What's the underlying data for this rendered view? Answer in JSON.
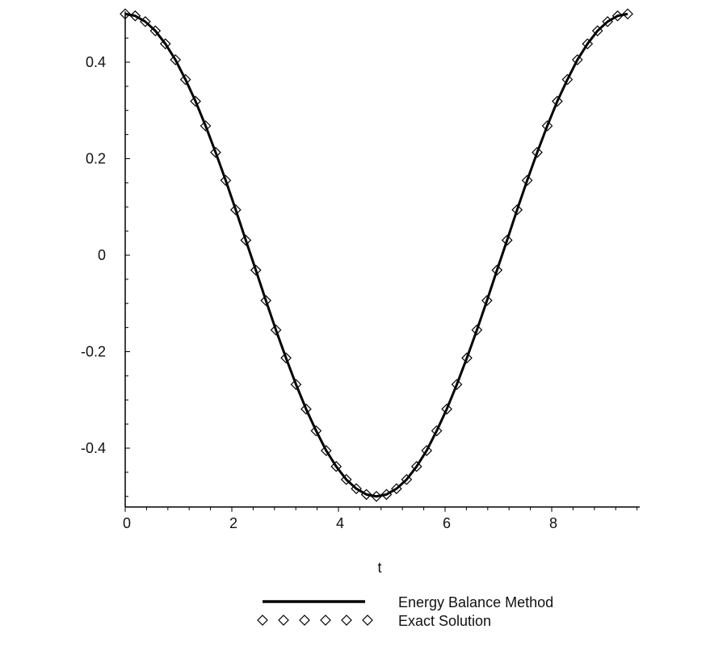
{
  "chart_data": {
    "type": "line",
    "title": "",
    "xlabel": "t",
    "ylabel": "",
    "xlim": [
      0,
      9.65
    ],
    "ylim": [
      -0.522,
      0.505
    ],
    "xticks": [
      "0",
      "2",
      "4",
      "6",
      "8"
    ],
    "xtick_values": [
      0,
      2,
      4,
      6,
      8
    ],
    "yticks": [
      "-0.4",
      "-0.2",
      "0",
      "0.2",
      "0.4"
    ],
    "ytick_values": [
      -0.4,
      -0.2,
      0,
      0.2,
      0.4
    ],
    "grid": false,
    "legend_placement": "bottom-center",
    "x": [
      0,
      0.188,
      0.377,
      0.565,
      0.754,
      0.942,
      1.131,
      1.319,
      1.508,
      1.696,
      1.885,
      2.073,
      2.262,
      2.45,
      2.639,
      2.827,
      3.016,
      3.204,
      3.393,
      3.581,
      3.77,
      3.958,
      4.147,
      4.335,
      4.524,
      4.712,
      4.901,
      5.089,
      5.278,
      5.466,
      5.655,
      5.843,
      6.032,
      6.22,
      6.409,
      6.597,
      6.786,
      6.974,
      7.163,
      7.351,
      7.54,
      7.728,
      7.917,
      8.105,
      8.294,
      8.482,
      8.671,
      8.859,
      9.048,
      9.236,
      9.425
    ],
    "series": [
      {
        "name": "Energy Balance Method",
        "style": "line",
        "color": "#000000",
        "values": [
          0.5,
          0.496,
          0.484,
          0.465,
          0.438,
          0.405,
          0.364,
          0.319,
          0.268,
          0.213,
          0.155,
          0.094,
          0.031,
          -0.031,
          -0.094,
          -0.155,
          -0.213,
          -0.268,
          -0.319,
          -0.364,
          -0.405,
          -0.438,
          -0.465,
          -0.484,
          -0.496,
          -0.5,
          -0.496,
          -0.484,
          -0.465,
          -0.438,
          -0.405,
          -0.364,
          -0.319,
          -0.268,
          -0.213,
          -0.155,
          -0.094,
          -0.031,
          0.031,
          0.094,
          0.155,
          0.213,
          0.268,
          0.319,
          0.364,
          0.405,
          0.438,
          0.465,
          0.484,
          0.496,
          0.5
        ]
      },
      {
        "name": "Exact Solution",
        "style": "diamond",
        "color": "#000000",
        "values": [
          0.5,
          0.496,
          0.484,
          0.465,
          0.438,
          0.405,
          0.364,
          0.319,
          0.268,
          0.213,
          0.155,
          0.094,
          0.031,
          -0.031,
          -0.094,
          -0.155,
          -0.213,
          -0.268,
          -0.319,
          -0.364,
          -0.405,
          -0.438,
          -0.465,
          -0.484,
          -0.496,
          -0.5,
          -0.496,
          -0.484,
          -0.465,
          -0.438,
          -0.405,
          -0.364,
          -0.319,
          -0.268,
          -0.213,
          -0.155,
          -0.094,
          -0.031,
          0.031,
          0.094,
          0.155,
          0.213,
          0.268,
          0.319,
          0.364,
          0.405,
          0.438,
          0.465,
          0.484,
          0.496,
          0.5
        ]
      }
    ]
  }
}
